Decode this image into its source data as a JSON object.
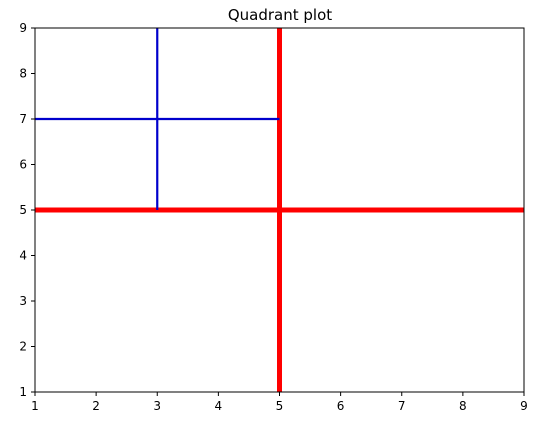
{
  "chart_data": {
    "type": "line",
    "title": "Quadrant plot",
    "xlabel": "",
    "ylabel": "",
    "xlim": [
      1,
      9
    ],
    "ylim": [
      1,
      9
    ],
    "xticks": [
      "1",
      "2",
      "3",
      "4",
      "5",
      "6",
      "7",
      "8",
      "9"
    ],
    "yticks": [
      "1",
      "2",
      "3",
      "4",
      "5",
      "6",
      "7",
      "8",
      "9"
    ],
    "grid": false,
    "legend": "none",
    "series": [
      {
        "color": "#ff0000",
        "style": "thick",
        "x": [
          5,
          5
        ],
        "y": [
          1,
          9
        ]
      },
      {
        "color": "#ff0000",
        "style": "thick",
        "x": [
          1,
          9
        ],
        "y": [
          5,
          5
        ]
      },
      {
        "color": "#0000cc",
        "style": "thin",
        "x": [
          3,
          3
        ],
        "y": [
          5,
          9
        ]
      },
      {
        "color": "#0000cc",
        "style": "thin",
        "x": [
          1,
          5
        ],
        "y": [
          7,
          7
        ]
      }
    ]
  }
}
